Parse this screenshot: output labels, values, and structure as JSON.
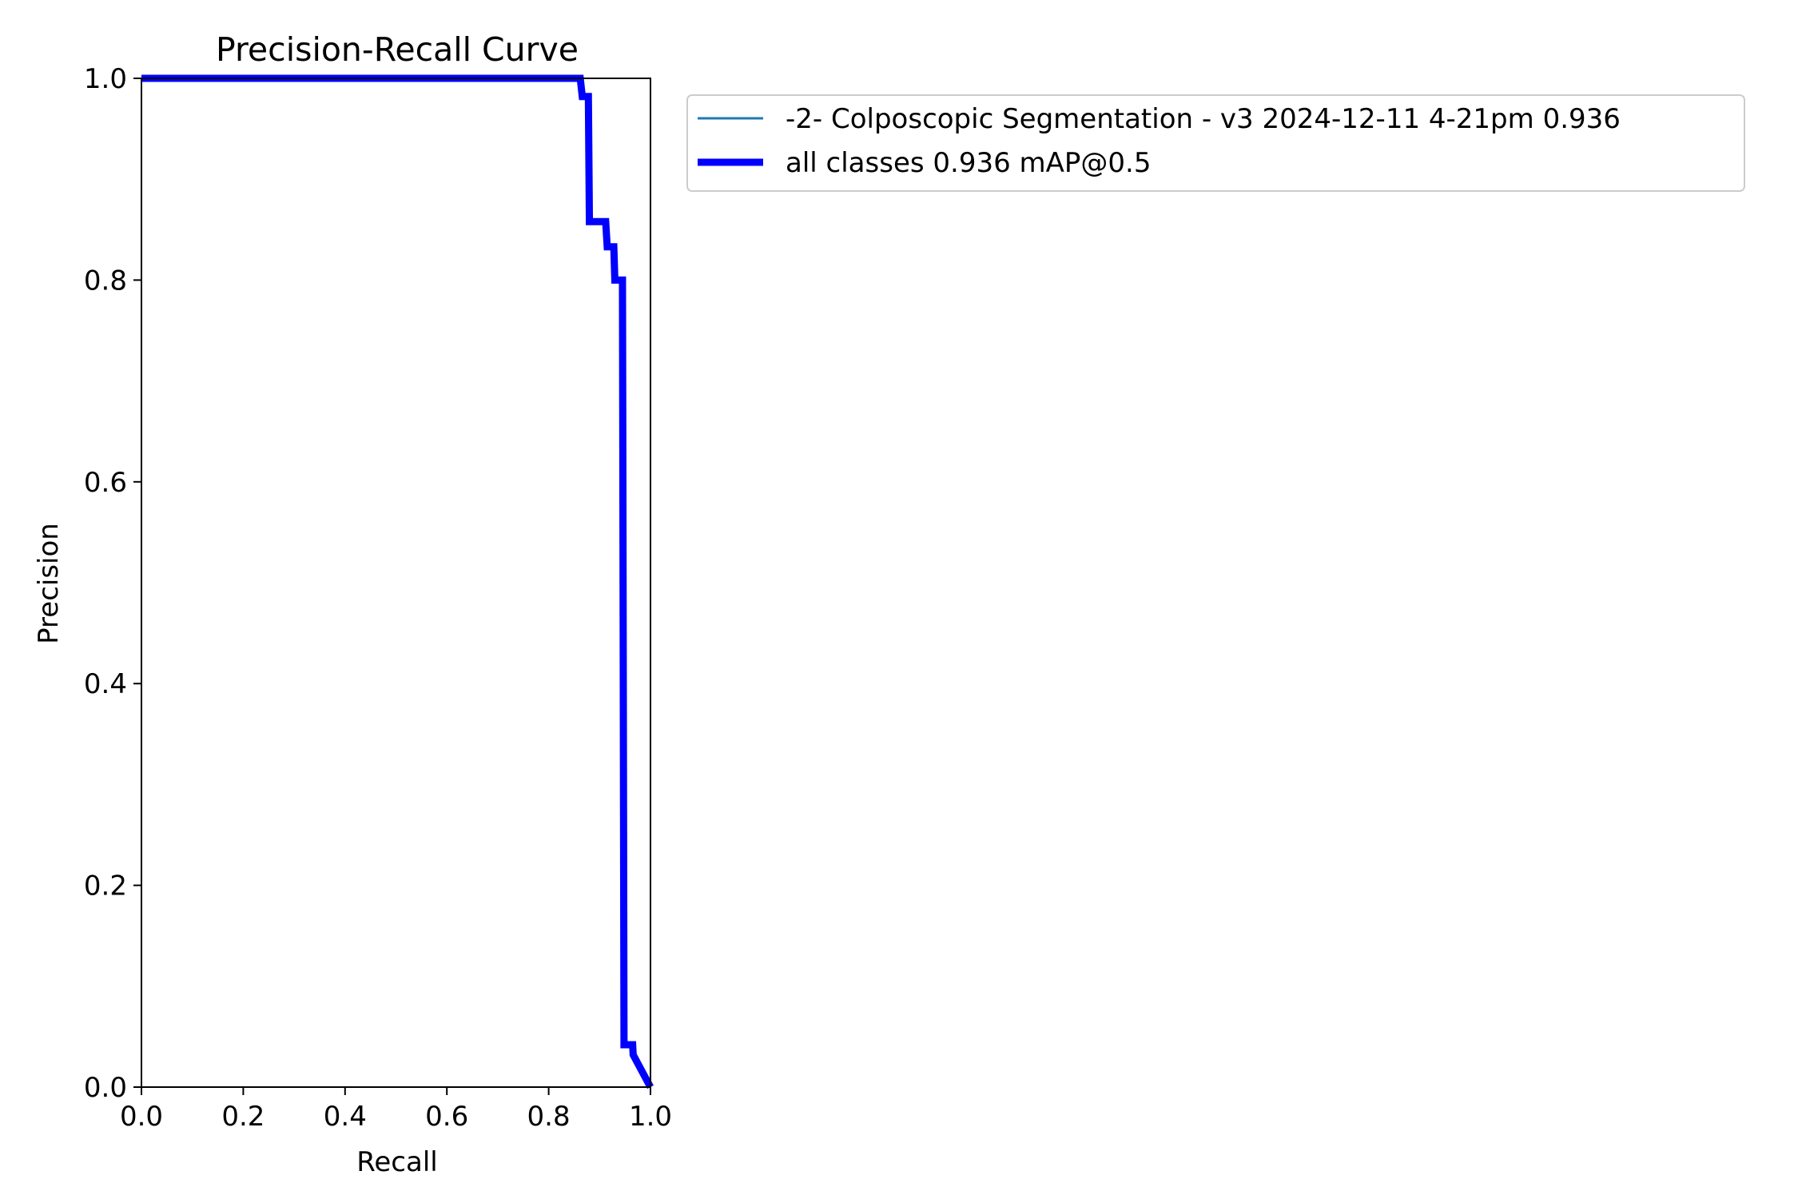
{
  "chart_data": {
    "type": "line",
    "title": "Precision-Recall Curve",
    "xlabel": "Recall",
    "ylabel": "Precision",
    "xlim": [
      0,
      1
    ],
    "ylim": [
      0,
      1
    ],
    "xticks": [
      "0.0",
      "0.2",
      "0.4",
      "0.6",
      "0.8",
      "1.0"
    ],
    "yticks": [
      "0.0",
      "0.2",
      "0.4",
      "0.6",
      "0.8",
      "1.0"
    ],
    "grid": false,
    "legend_position": "outside-right-top",
    "series": [
      {
        "name": "-2- Colposcopic Segmentation - v3 2024-12-11 4-21pm 0.936",
        "color": "#1f77b4",
        "style": "thin",
        "x": [
          0,
          0.862,
          0.866,
          0.878,
          0.88,
          0.912,
          0.915,
          0.928,
          0.93,
          0.945,
          0.948,
          0.965,
          0.966,
          1.0
        ],
        "y": [
          1.0,
          1.0,
          0.982,
          0.982,
          0.858,
          0.858,
          0.833,
          0.833,
          0.8,
          0.8,
          0.042,
          0.042,
          0.032,
          0.0
        ]
      },
      {
        "name": "all classes 0.936 mAP@0.5",
        "color": "#0000ff",
        "style": "thick",
        "x": [
          0,
          0.862,
          0.866,
          0.878,
          0.88,
          0.912,
          0.915,
          0.928,
          0.93,
          0.945,
          0.948,
          0.965,
          0.966,
          1.0
        ],
        "y": [
          1.0,
          1.0,
          0.982,
          0.982,
          0.858,
          0.858,
          0.833,
          0.833,
          0.8,
          0.8,
          0.042,
          0.042,
          0.032,
          0.0
        ]
      }
    ]
  }
}
